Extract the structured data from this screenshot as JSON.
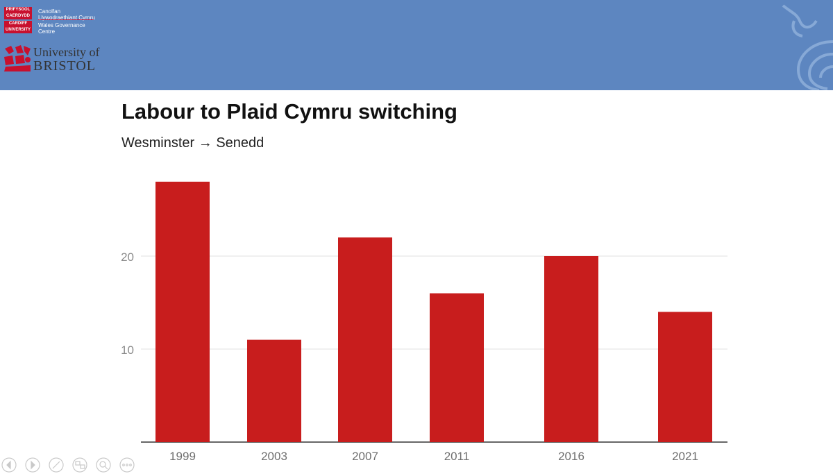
{
  "header": {
    "cardiff_logo_lines": [
      "PRIFYSGOL",
      "CAERDYDD",
      "CARDIFF",
      "UNIVERSITY"
    ],
    "centre_name_lines": [
      "Canolfan",
      "Llywodraethiant Cymru",
      "Wales Governance",
      "Centre"
    ],
    "bristol_logo_lines": [
      "University of",
      "BRISTOL"
    ],
    "colors": {
      "banner": "#5d86c0",
      "cardiff_red": "#c8102e"
    }
  },
  "chart_data": {
    "type": "bar",
    "title": "Labour to Plaid Cymru switching",
    "subtitle": "Wesminster → Senedd",
    "categories": [
      "1999",
      "2003",
      "2007",
      "2011",
      "2016",
      "2021"
    ],
    "values": [
      28,
      11,
      22,
      16,
      20,
      14
    ],
    "yticks": [
      10,
      20
    ],
    "ylim": [
      0,
      30
    ],
    "grid": true,
    "bar_color": "#c81d1d"
  },
  "nav": {
    "icons": [
      "previous-slide-icon",
      "next-slide-icon",
      "pen-icon",
      "slides-icon",
      "zoom-icon",
      "more-options-icon"
    ]
  }
}
